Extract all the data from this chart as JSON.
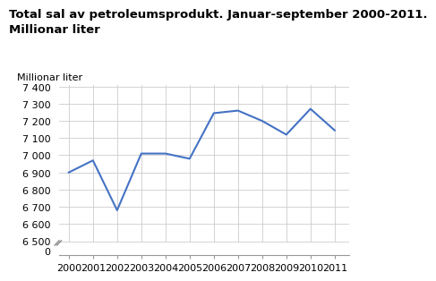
{
  "title_line1": "Total sal av petroleumsprodukt. Januar-september 2000-2011.",
  "title_line2": "Millionar liter",
  "ylabel": "Millionar liter",
  "years": [
    2000,
    2001,
    2002,
    2003,
    2004,
    2005,
    2006,
    2007,
    2008,
    2009,
    2010,
    2011
  ],
  "values": [
    6900,
    6970,
    6680,
    7010,
    7010,
    6980,
    7245,
    7260,
    7200,
    7120,
    7270,
    7145
  ],
  "line_color": "#4472C4",
  "line_width": 1.5,
  "background_color": "#ffffff",
  "grid_color": "#cccccc",
  "title_fontsize": 9.5,
  "tick_fontsize": 8,
  "ylabel_fontsize": 8
}
